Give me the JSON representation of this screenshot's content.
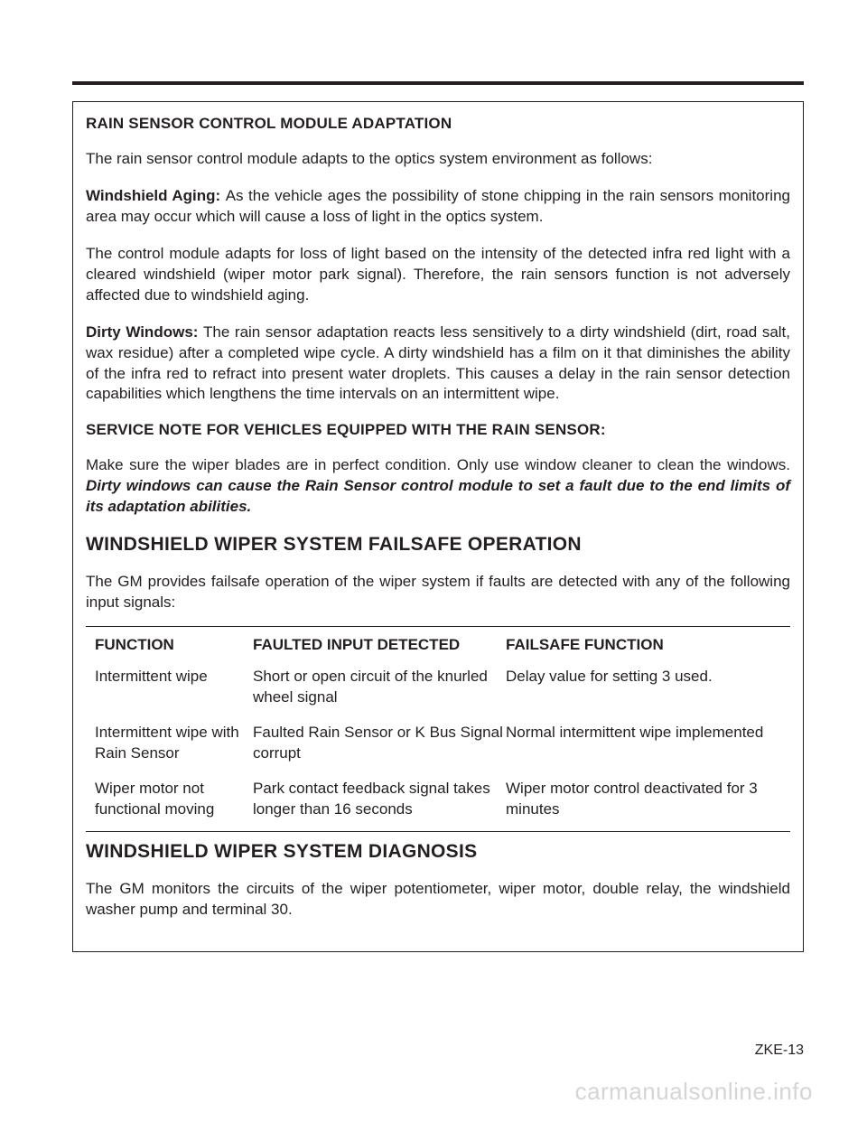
{
  "page": {
    "top_rule_color": "#231f20",
    "border_color": "#231f20",
    "background_color": "#ffffff",
    "text_color": "#231f20",
    "body_fontsize": 17,
    "heading_fontsize": 21,
    "footer_fontsize": 16,
    "watermark_color": "#d5d5d5",
    "watermark_fontsize": 26
  },
  "headings": {
    "h1": "RAIN SENSOR CONTROL MODULE ADAPTATION",
    "h2": "SERVICE NOTE FOR VEHICLES EQUIPPED WITH THE RAIN SENSOR:",
    "h3": "WINDSHIELD WIPER SYSTEM FAILSAFE OPERATION",
    "h4": "WINDSHIELD WIPER SYSTEM DIAGNOSIS"
  },
  "paragraphs": {
    "p1": "The rain sensor control module adapts to the optics system environment as follows:",
    "p2_lead": "Windshield Aging: ",
    "p2_body": "As the vehicle ages the possibility of stone chipping in the rain sensors monitoring area may occur which will cause a loss of light in the optics system.",
    "p3": "The control module adapts for loss of light based on the intensity of the detected infra red light with a cleared windshield (wiper motor park signal).  Therefore, the rain sensors function is not adversely affected due to windshield aging.",
    "p4_lead": "Dirty Windows: ",
    "p4_body": "The rain sensor adaptation reacts less sensitively to a dirty windshield (dirt, road salt, wax residue) after a completed wipe cycle.   A dirty windshield has a film on it that diminishes the ability of the infra red to refract into present water droplets.  This causes a delay in the rain sensor detection capabilities which lengthens the time intervals on an intermittent wipe.",
    "p5_a": "Make sure the wiper blades are in perfect condition.  Only use window cleaner to clean the windows.  ",
    "p5_b": "Dirty windows can cause the Rain Sensor control module to set a fault due to the end limits of its adaptation abilities.",
    "p6": "The GM provides failsafe operation of the wiper system if faults are detected with any of the following input signals:",
    "p7": "The GM monitors the circuits of the wiper potentiometer, wiper motor, double relay, the windshield washer pump and terminal 30."
  },
  "table": {
    "columns": [
      "FUNCTION",
      "FAULTED INPUT DETECTED",
      "FAILSAFE FUNCTION"
    ],
    "rows": [
      {
        "function": "Intermittent wipe",
        "faulted": "Short or open circuit of the knurled wheel signal",
        "failsafe": "Delay value for setting 3 used."
      },
      {
        "function": "Intermittent wipe with Rain Sensor",
        "faulted": "Faulted Rain Sensor or K Bus Signal corrupt",
        "failsafe": "Normal intermittent wipe implemented"
      },
      {
        "function": "Wiper motor not functional moving",
        "faulted": "Park contact feedback signal takes longer than 16 seconds",
        "failsafe": "Wiper motor control deactivated for 3 minutes"
      }
    ]
  },
  "footer": "ZKE-13",
  "watermark": "carmanualsonline.info"
}
